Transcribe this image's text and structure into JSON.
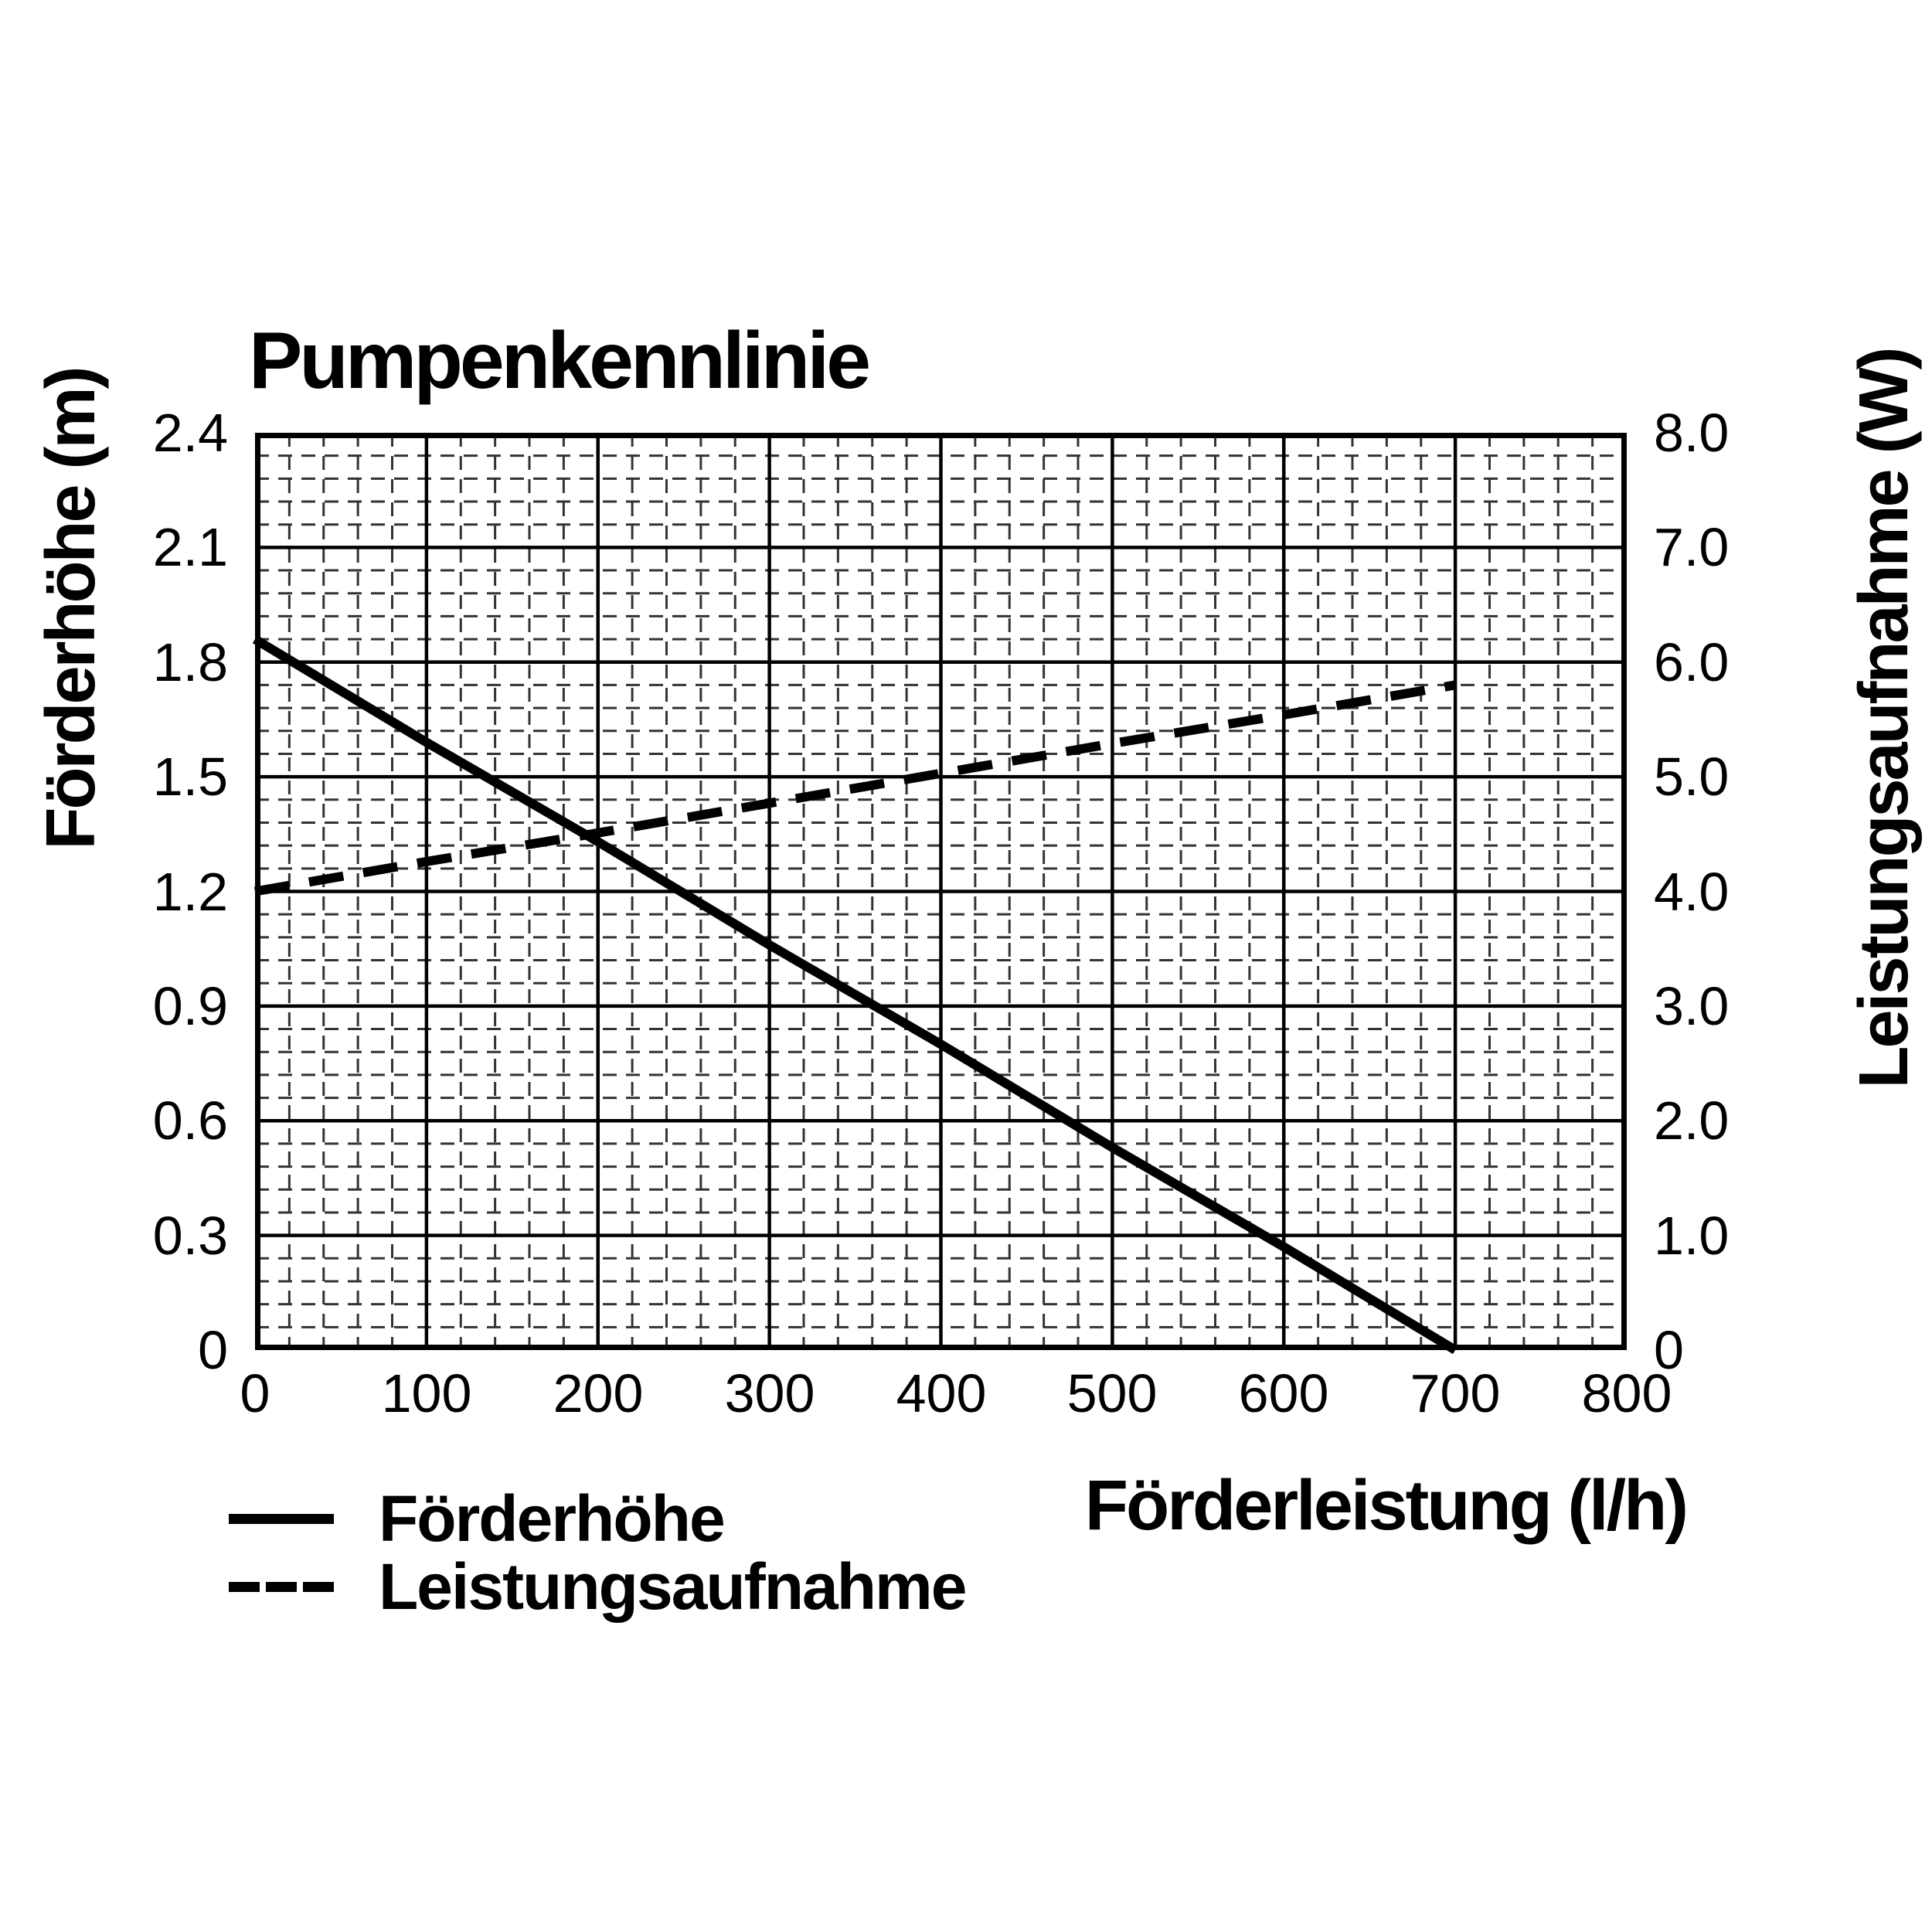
{
  "page": {
    "background": "#ffffff",
    "text_color": "#000000"
  },
  "chart_data": {
    "type": "line",
    "title": "Pumpenkennlinie",
    "x_axis": {
      "label": "Förderleistung (l/h)",
      "min": 0,
      "max": 800,
      "tick_step": 100,
      "tick_labels": [
        "0",
        "100",
        "200",
        "300",
        "400",
        "500",
        "600",
        "700",
        "800"
      ],
      "minor_divisions_per_major": 5
    },
    "y_axis_left": {
      "label": "Förderhöhe (m)",
      "min": 0,
      "max": 2.4,
      "tick_step": 0.3,
      "tick_labels": [
        "0",
        "0.3",
        "0.6",
        "0.9",
        "1.2",
        "1.5",
        "1.8",
        "2.1",
        "2.4"
      ],
      "minor_divisions_per_major": 5
    },
    "y_axis_right": {
      "label": "Leistungsaufnahme (W)",
      "min": 0,
      "max": 8,
      "tick_step": 1,
      "tick_labels": [
        "0",
        "1.0",
        "2.0",
        "3.0",
        "4.0",
        "5.0",
        "6.0",
        "7.0",
        "8.0"
      ],
      "minor_divisions_per_major": 5
    },
    "series": [
      {
        "name": "Förderhöhe",
        "axis": "left",
        "unit": "m",
        "line_style": "solid",
        "color": "#000000",
        "points": [
          [
            0,
            1.86
          ],
          [
            100,
            1.59
          ],
          [
            200,
            1.33
          ],
          [
            300,
            1.06
          ],
          [
            400,
            0.8
          ],
          [
            500,
            0.53
          ],
          [
            600,
            0.27
          ],
          [
            700,
            0
          ]
        ]
      },
      {
        "name": "Leistungsaufnahme",
        "axis": "right",
        "unit": "W",
        "line_style": "dashed",
        "color": "#000000",
        "points": [
          [
            0,
            4.0
          ],
          [
            100,
            4.26
          ],
          [
            200,
            4.51
          ],
          [
            300,
            4.77
          ],
          [
            400,
            5.03
          ],
          [
            500,
            5.29
          ],
          [
            600,
            5.54
          ],
          [
            700,
            5.8
          ]
        ]
      }
    ],
    "legend": {
      "position": "bottom-left",
      "items": [
        {
          "label": "Förderhöhe",
          "line_style": "solid"
        },
        {
          "label": "Leistungsaufnahme",
          "line_style": "dashed"
        }
      ]
    },
    "grid": {
      "major_color": "#000000",
      "minor_color": "#333333",
      "minor_style": "dashed",
      "border_color": "#000000",
      "background": "#ffffff"
    }
  }
}
